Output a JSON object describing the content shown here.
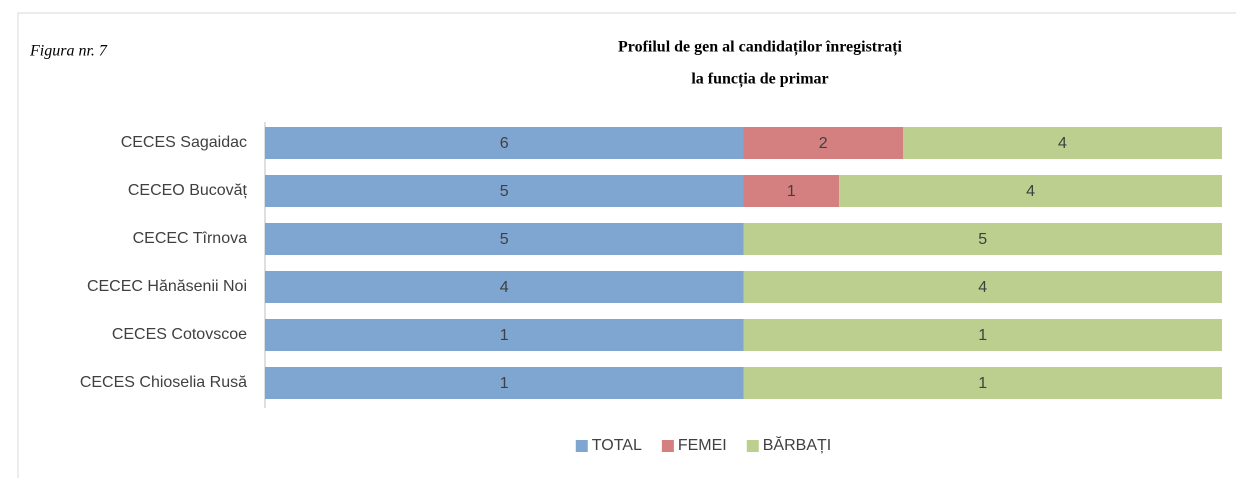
{
  "figure_label": "Figura nr. 7",
  "chart_data": {
    "type": "bar",
    "orientation": "horizontal",
    "stacking": "percent",
    "title": [
      "Profilul de gen al candidaților înregistrați",
      "la funcția de primar"
    ],
    "categories": [
      "CECES Sagaidac",
      "CECEO Bucovăț",
      "CECEC Tîrnova",
      "CECEC Hănăsenii Noi",
      "CECES Cotovscoe",
      "CECES Chioselia Rusă"
    ],
    "series": [
      {
        "name": "TOTAL",
        "color": "#7fa6d1",
        "values": [
          6,
          5,
          5,
          4,
          1,
          1
        ]
      },
      {
        "name": "FEMEI",
        "color": "#d58080",
        "values": [
          2,
          1,
          0,
          0,
          0,
          0
        ]
      },
      {
        "name": "BĂRBAȚI",
        "color": "#bccf8f",
        "values": [
          4,
          4,
          5,
          4,
          1,
          1
        ]
      }
    ],
    "legend": "bottom"
  }
}
